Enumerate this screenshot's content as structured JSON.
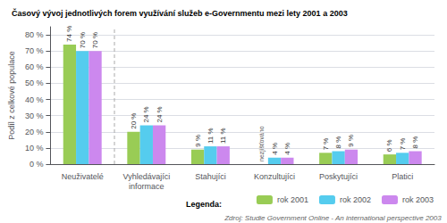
{
  "chart_data": {
    "type": "bar",
    "title": "Časový vývoj jednotlivých forem využívání služeb e-Governmentu mezi lety 2001 a 2003",
    "ylabel": "Podíl z celkové populace",
    "categories": [
      "Neuživatelé",
      "Vyhledávajíci\ninformace",
      "Stahujíci",
      "Konzultujíci",
      "Poskytujíci",
      "Platici"
    ],
    "series": [
      {
        "name": "rok 2001",
        "color": "#99cc55",
        "values": [
          74,
          20,
          9,
          null,
          7,
          6
        ],
        "value_labels": [
          "74 %",
          "20 %",
          "9 %",
          null,
          "7 %",
          "6 %"
        ]
      },
      {
        "name": "rok 2002",
        "color": "#55ccee",
        "values": [
          70,
          24,
          11,
          4,
          8,
          7
        ],
        "value_labels": [
          "70 %",
          "24 %",
          "11 %",
          "4 %",
          "8 %",
          "7 %"
        ]
      },
      {
        "name": "rok 2003",
        "color": "#cc88ee",
        "values": [
          70,
          24,
          11,
          4,
          9,
          8
        ],
        "value_labels": [
          "70 %",
          "24 %",
          "11 %",
          "4 %",
          "9 %",
          "8 %"
        ]
      }
    ],
    "ylim": [
      0,
      85
    ],
    "yticks": [
      {
        "value": 0,
        "label": "0 %"
      },
      {
        "value": 10,
        "label": "10 %"
      },
      {
        "value": 20,
        "label": "20 %"
      },
      {
        "value": 30,
        "label": "30 %"
      },
      {
        "value": 40,
        "label": "40 %"
      },
      {
        "value": 50,
        "label": "50 %"
      },
      {
        "value": 60,
        "label": "60 %"
      },
      {
        "value": 70,
        "label": "70 %"
      },
      {
        "value": 80,
        "label": "80 %"
      }
    ],
    "grid": true,
    "legend": "bottom",
    "data_labels": true,
    "annotations": [
      {
        "text": "nezjišťováno",
        "category": "Konzultujíci",
        "series": "rok 2001"
      }
    ],
    "legend_title": "Legenda:",
    "source": "Zdroj: Studie Government Online - An international perspective 2003"
  }
}
